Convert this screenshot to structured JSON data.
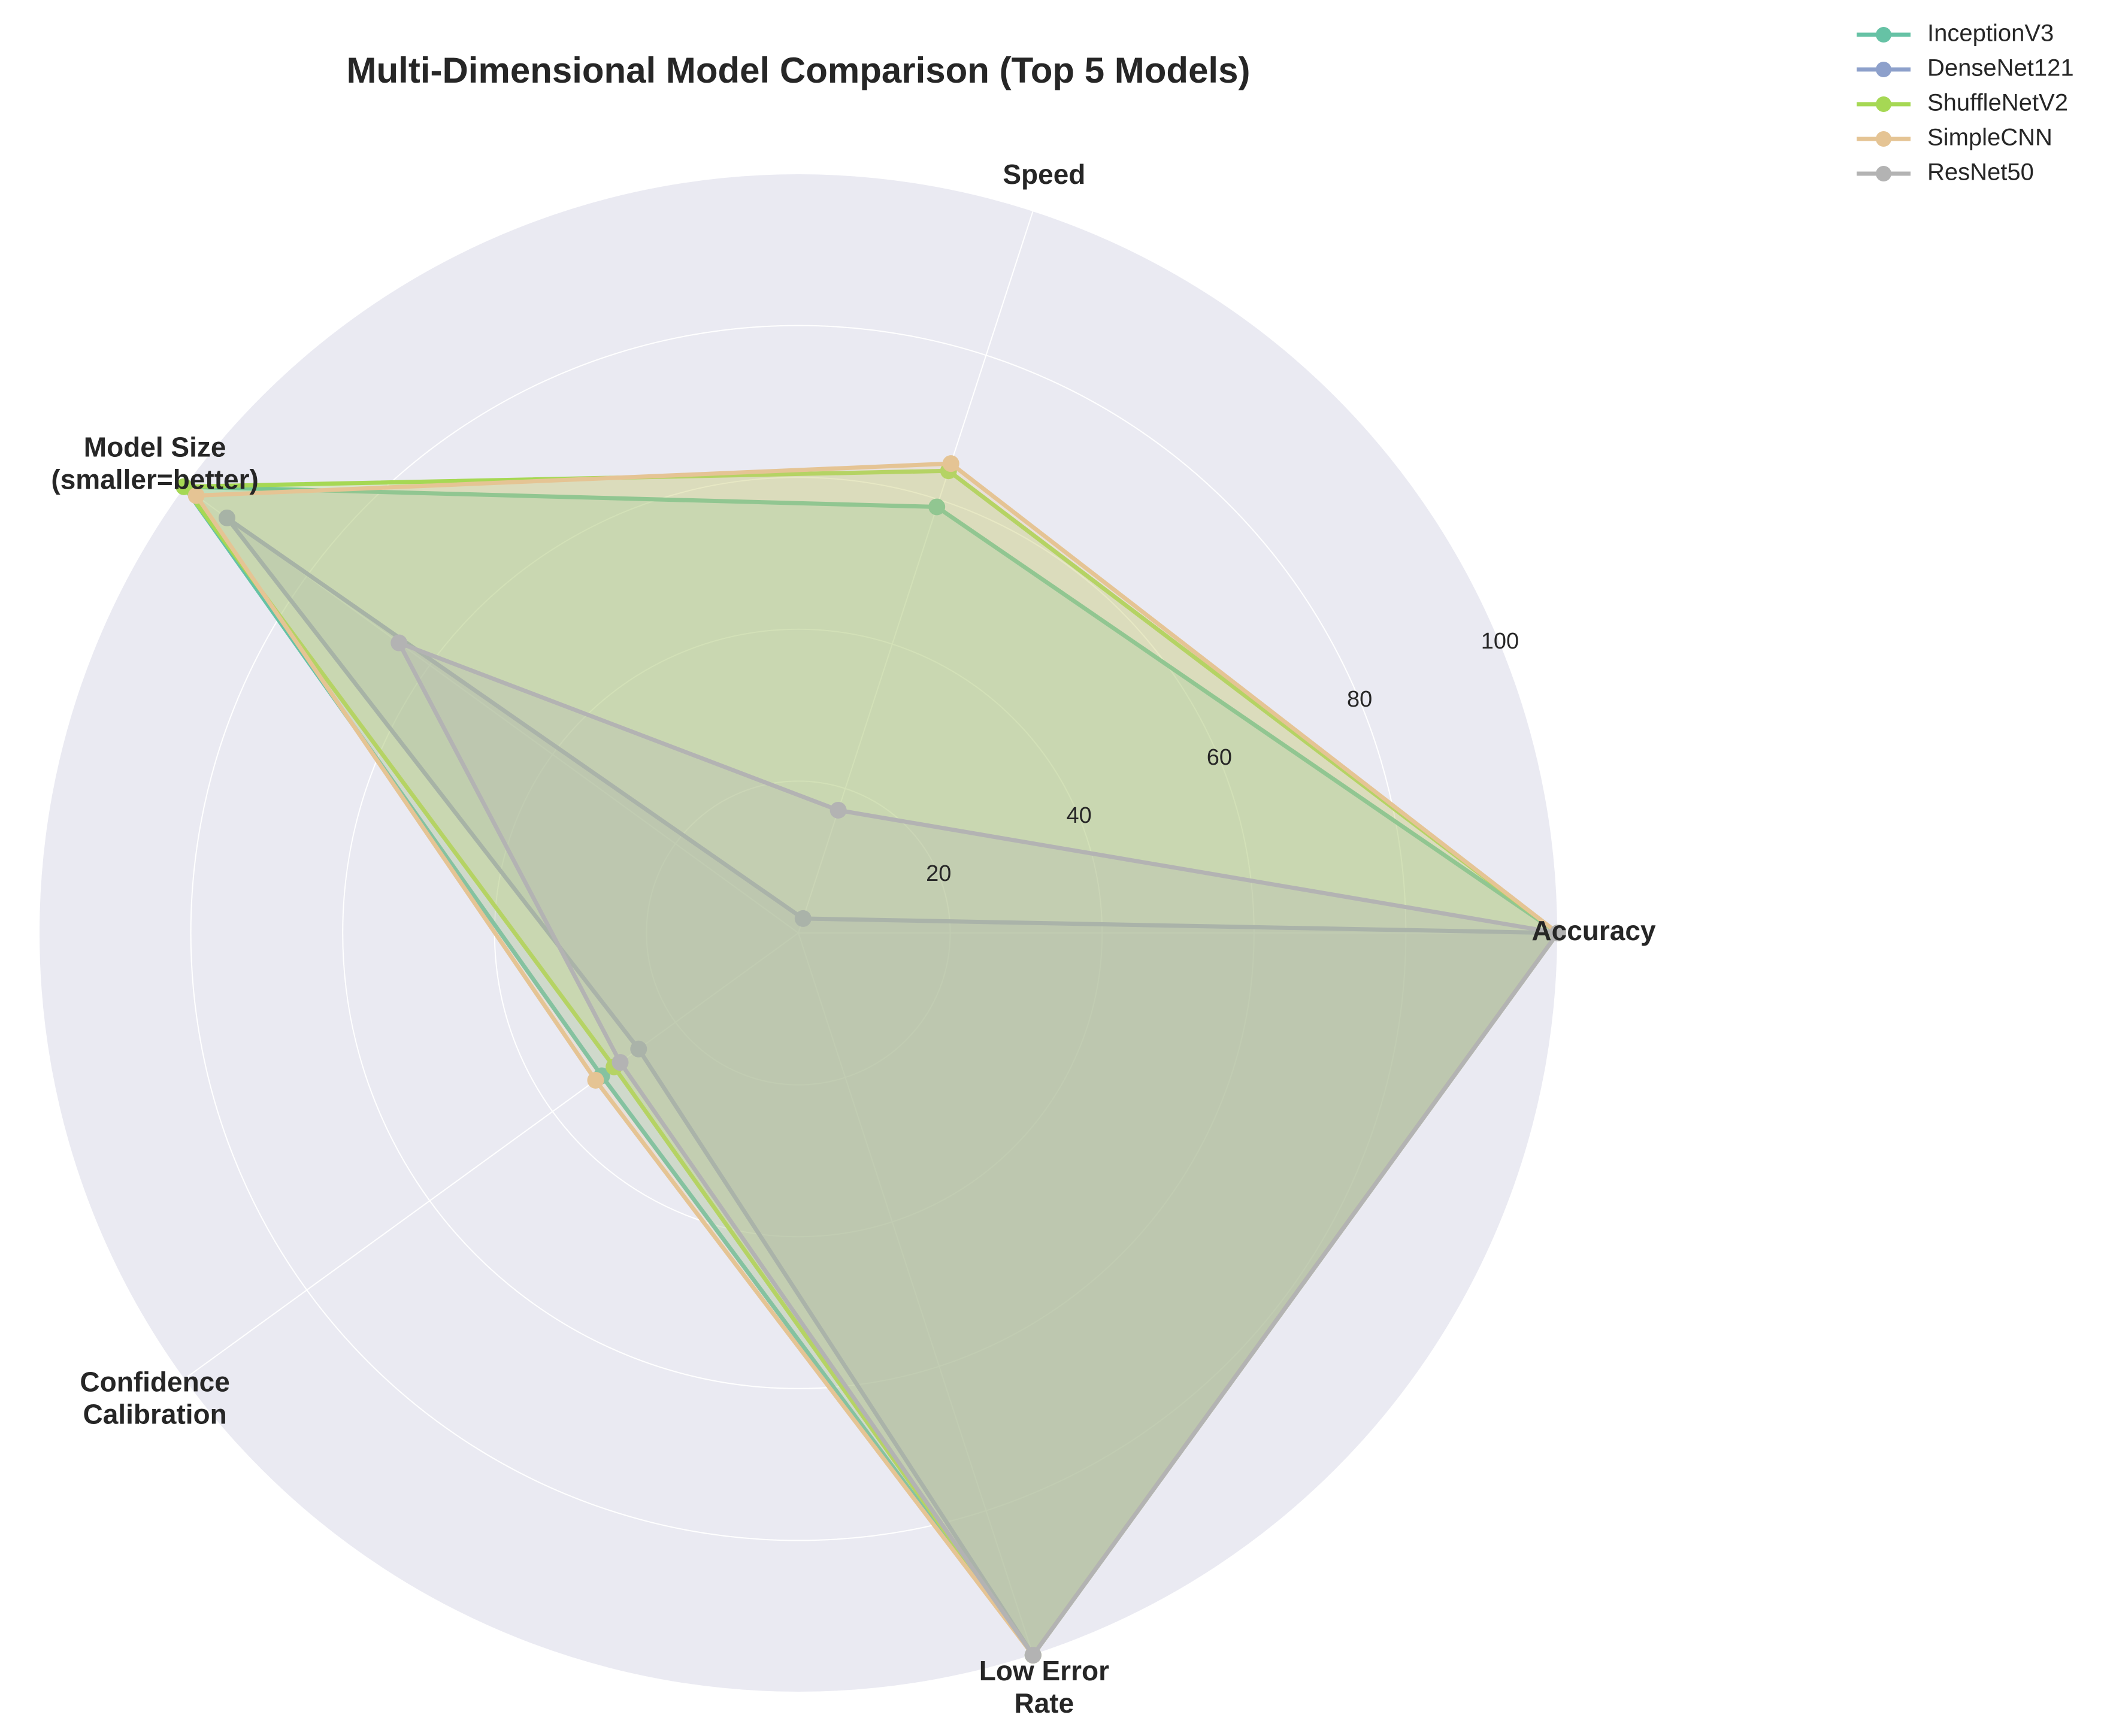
{
  "chart_data": {
    "type": "radar",
    "title": "Multi-Dimensional Model Comparison (Top 5 Models)",
    "axes": [
      {
        "label_lines": [
          "Accuracy"
        ]
      },
      {
        "label_lines": [
          "Speed"
        ]
      },
      {
        "label_lines": [
          "Model Size",
          "(smaller=better)"
        ]
      },
      {
        "label_lines": [
          "Confidence",
          "Calibration"
        ]
      },
      {
        "label_lines": [
          "Low Error",
          "Rate"
        ]
      }
    ],
    "r_range": [
      0,
      100
    ],
    "r_ticks": [
      "20",
      "40",
      "60",
      "80",
      "100"
    ],
    "r_tick_values": [
      20,
      40,
      60,
      80,
      100
    ],
    "grid": true,
    "background_color": "#eaeaf2",
    "legend_position": "top-right",
    "series": [
      {
        "name": "InceptionV3",
        "color": "#66c2a5",
        "values": [
          100,
          59,
          100,
          32,
          100
        ]
      },
      {
        "name": "DenseNet121",
        "color": "#8da0cb",
        "values": [
          100,
          2,
          93,
          26,
          100
        ]
      },
      {
        "name": "ShuffleNetV2",
        "color": "#a6d854",
        "values": [
          100,
          64,
          100,
          30,
          100
        ]
      },
      {
        "name": "SimpleCNN",
        "color": "#e5c494",
        "values": [
          100,
          65,
          98,
          33,
          100
        ]
      },
      {
        "name": "ResNet50",
        "color": "#b3b3b3",
        "values": [
          100,
          17,
          65,
          29,
          100
        ]
      }
    ]
  }
}
